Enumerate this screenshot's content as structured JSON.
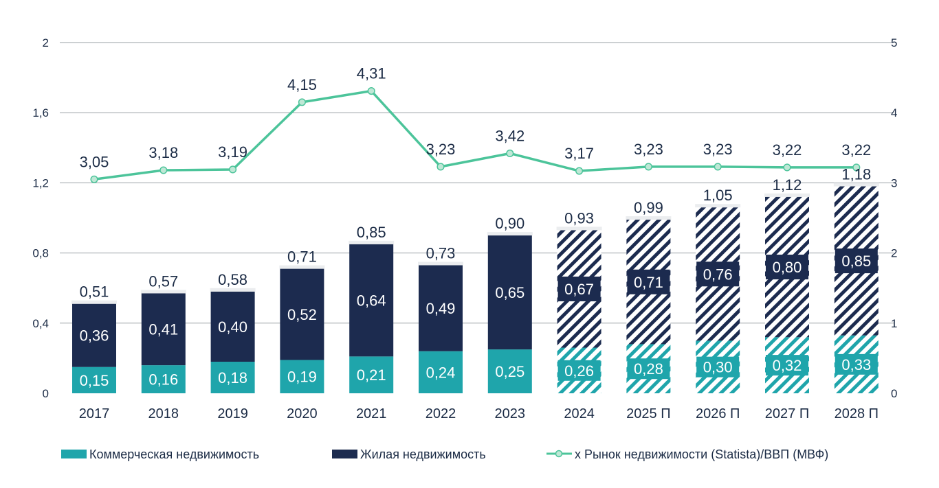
{
  "colors": {
    "commercial": "#1fa5ab",
    "residential": "#1c2b4f",
    "line": "#4cc49a",
    "marker_fill": "#bfe8d6",
    "text": "#1b2b45",
    "grid": "#9aa0a6",
    "background": "#ffffff"
  },
  "chart_data": {
    "type": "bar",
    "stacked": true,
    "categories": [
      "2017",
      "2018",
      "2019",
      "2020",
      "2021",
      "2022",
      "2023",
      "2024",
      "2025 П",
      "2026 П",
      "2027 П",
      "2028 П"
    ],
    "forecast_from_index": 7,
    "forecast_style": "hatched",
    "series": [
      {
        "name": "Коммерческая недвижимость",
        "type": "bar",
        "axis": "left",
        "values": [
          0.15,
          0.16,
          0.18,
          0.19,
          0.21,
          0.24,
          0.25,
          0.26,
          0.28,
          0.3,
          0.32,
          0.33
        ],
        "labels": [
          "0,15",
          "0,16",
          "0,18",
          "0,19",
          "0,21",
          "0,24",
          "0,25",
          "0,26",
          "0,28",
          "0,30",
          "0,32",
          "0,33"
        ]
      },
      {
        "name": "Жилая недвижимость",
        "type": "bar",
        "axis": "left",
        "values": [
          0.36,
          0.41,
          0.4,
          0.52,
          0.64,
          0.49,
          0.65,
          0.67,
          0.71,
          0.76,
          0.8,
          0.85
        ],
        "labels": [
          "0,36",
          "0,41",
          "0,40",
          "0,52",
          "0,64",
          "0,49",
          "0,65",
          "0,67",
          "0,71",
          "0,76",
          "0,80",
          "0,85"
        ]
      },
      {
        "name": "x Рынок недвижимости (Statista)/ВВП (МВФ)",
        "type": "line",
        "axis": "right",
        "marker": "circle",
        "values": [
          3.05,
          3.18,
          3.19,
          4.15,
          4.31,
          3.23,
          3.42,
          3.17,
          3.23,
          3.23,
          3.22,
          3.22
        ],
        "labels": [
          "3,05",
          "3,18",
          "3,19",
          "4,15",
          "4,31",
          "3,23",
          "3,42",
          "3,17",
          "3,23",
          "3,23",
          "3,22",
          "3,22"
        ]
      }
    ],
    "totals": {
      "values": [
        0.51,
        0.57,
        0.58,
        0.71,
        0.85,
        0.73,
        0.9,
        0.93,
        0.99,
        1.05,
        1.12,
        1.18
      ],
      "labels": [
        "0,51",
        "0,57",
        "0,58",
        "0,71",
        "0,85",
        "0,73",
        "0,90",
        "0,93",
        "0,99",
        "1,05",
        "1,12",
        "1,18"
      ]
    },
    "y_left": {
      "min": 0,
      "max": 2,
      "ticks": [
        0,
        0.4,
        0.8,
        1.2,
        1.6,
        2
      ],
      "tick_labels": [
        "0",
        "0,4",
        "0,8",
        "1,2",
        "1,6",
        "2"
      ]
    },
    "y_right": {
      "min": 0,
      "max": 5,
      "ticks": [
        0,
        1,
        2,
        3,
        4,
        5
      ],
      "tick_labels": [
        "0",
        "1",
        "2",
        "3",
        "4",
        "5"
      ]
    },
    "grid": true,
    "legend": "bottom"
  }
}
